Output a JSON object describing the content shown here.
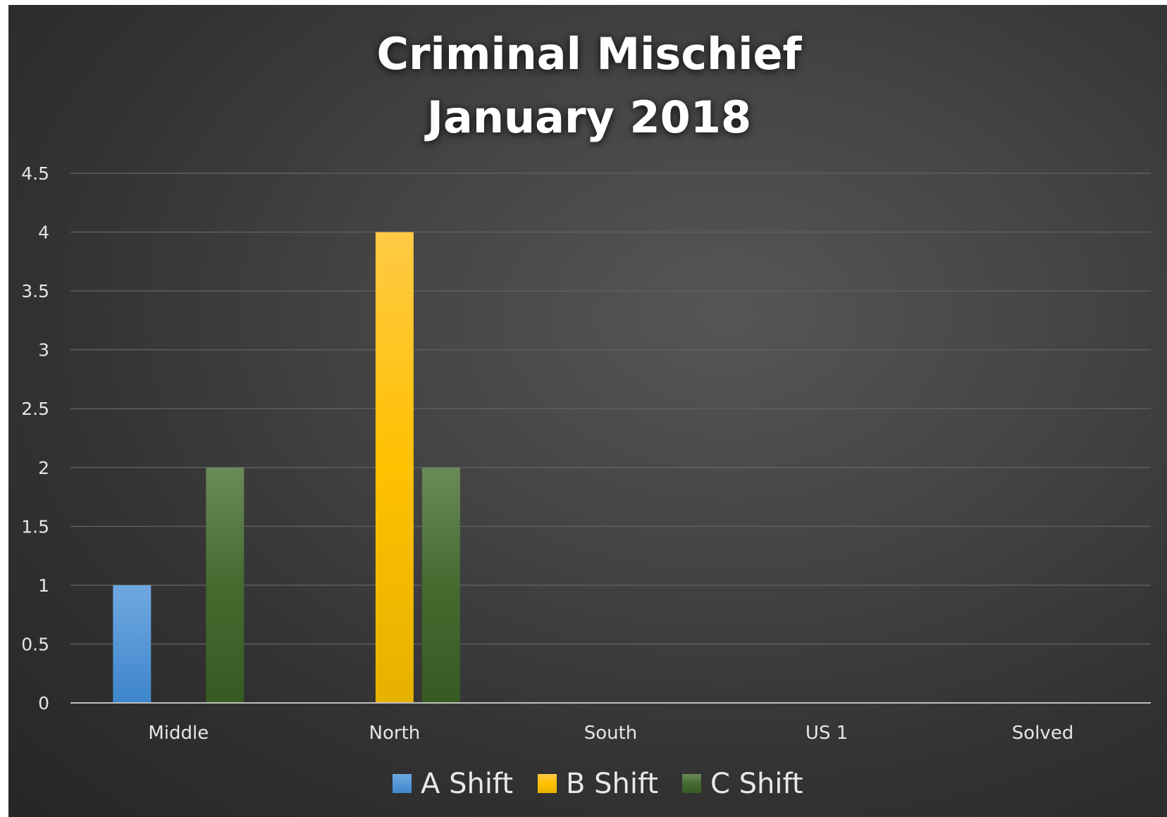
{
  "chart_data": {
    "type": "bar",
    "title": [
      "Criminal Mischief",
      "January 2018"
    ],
    "categories": [
      "Middle",
      "North",
      "South",
      "US 1",
      "Solved"
    ],
    "series": [
      {
        "name": "A Shift",
        "values": [
          1,
          0,
          0,
          0,
          0
        ],
        "color": "#5b9bd5"
      },
      {
        "name": "B Shift",
        "values": [
          0,
          4,
          0,
          0,
          0
        ],
        "color": "#ffc000"
      },
      {
        "name": "C Shift",
        "values": [
          2,
          2,
          0,
          0,
          0
        ],
        "color": "#43682b"
      }
    ],
    "ylim": [
      0,
      4.5
    ],
    "yticks": [
      "0",
      "0.5",
      "1",
      "1.5",
      "2",
      "2.5",
      "3",
      "3.5",
      "4",
      "4.5"
    ],
    "grid": true,
    "legend": "bottom"
  }
}
